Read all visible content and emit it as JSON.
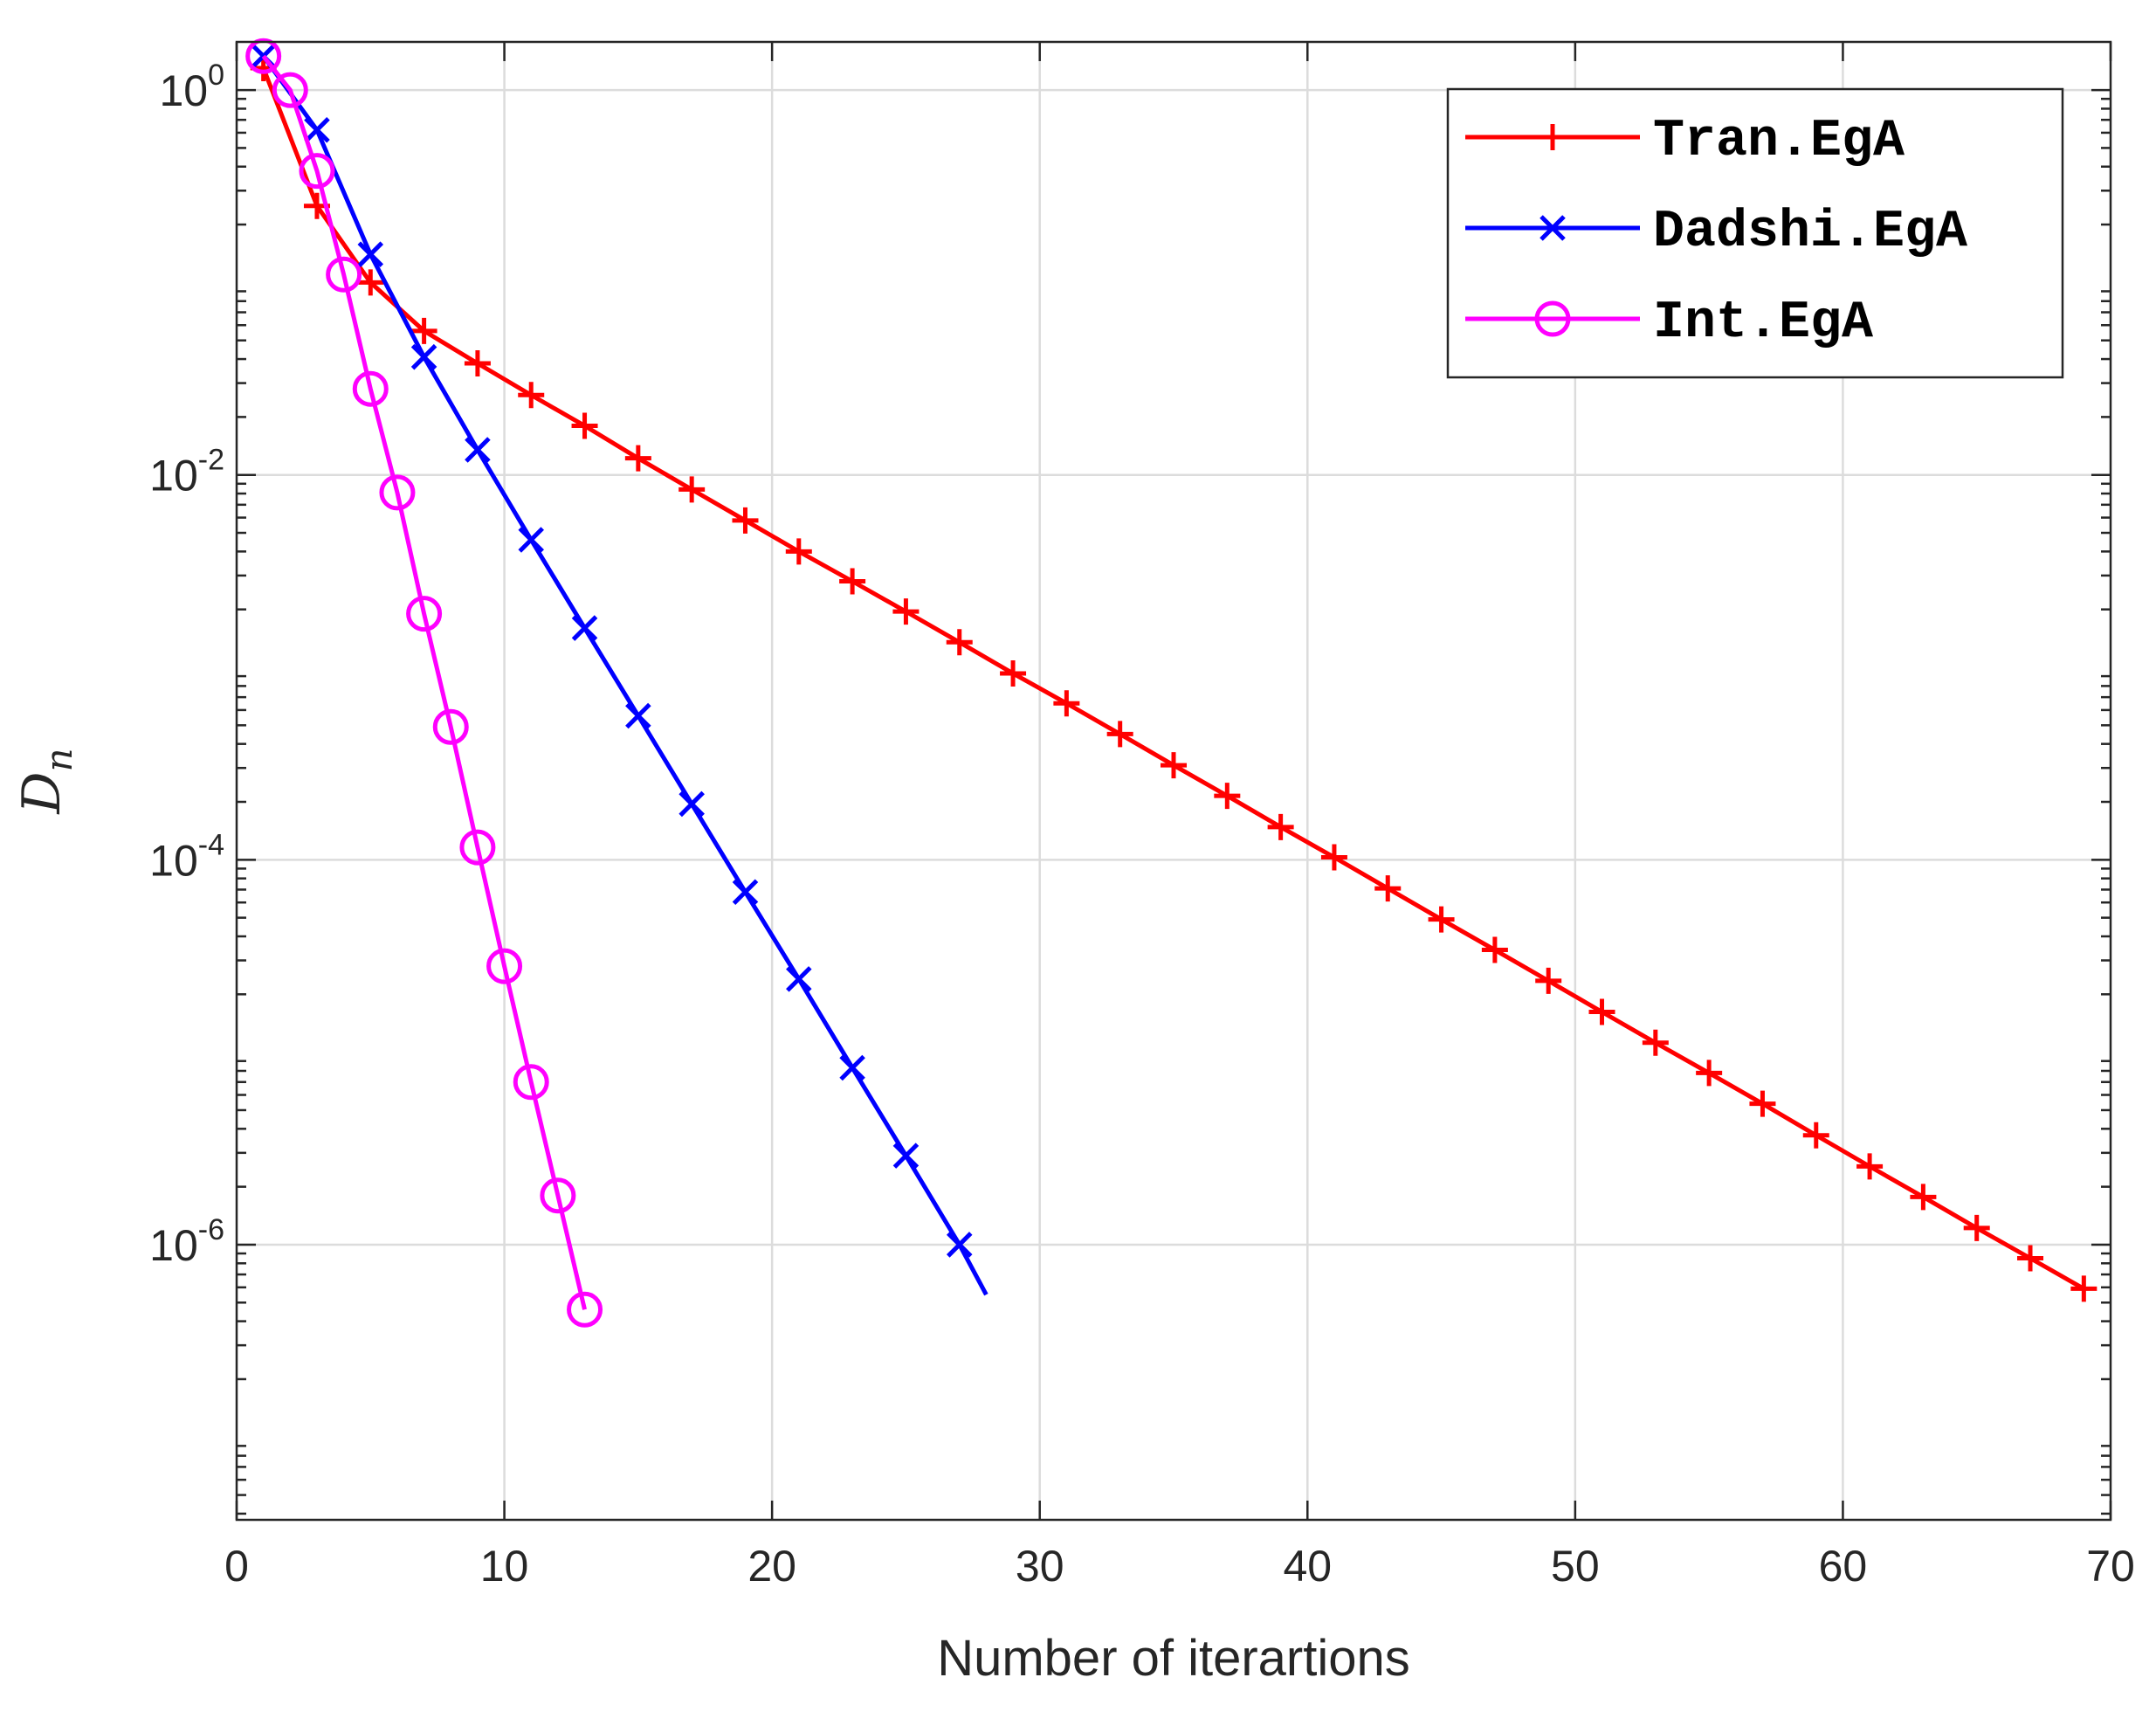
{
  "chart_data": {
    "type": "line",
    "title": "",
    "xlabel": "Number of iterartions",
    "ylabel": "D",
    "ylabel_subscript": "n",
    "xlim": [
      0,
      70
    ],
    "ylim_log10": [
      -7.43,
      0.25
    ],
    "yscale": "log",
    "grid": true,
    "legend_position": "top-right",
    "x_ticks": [
      0,
      10,
      20,
      30,
      40,
      50,
      60,
      70
    ],
    "y_ticks": [
      {
        "exp": 0,
        "base": "10",
        "power": "0"
      },
      {
        "exp": -2,
        "base": "10",
        "power": "-2"
      },
      {
        "exp": -4,
        "base": "10",
        "power": "-4"
      },
      {
        "exp": -6,
        "base": "10",
        "power": "-6"
      }
    ],
    "series": [
      {
        "name": "Tran.EgA",
        "color": "#ff0000",
        "marker": "plus",
        "x": [
          1,
          3,
          5,
          7,
          9,
          11,
          13,
          15,
          17,
          19,
          21,
          23,
          25,
          27,
          29,
          31,
          33,
          35,
          37,
          39,
          41,
          43,
          45,
          47,
          49,
          51,
          53,
          55,
          57,
          59,
          61,
          63,
          65,
          67,
          69
        ],
        "y": [
          1.3,
          0.25,
          0.1,
          0.056,
          0.038,
          0.026,
          0.018,
          0.0122,
          0.0084,
          0.0058,
          0.004,
          0.0028,
          0.00195,
          0.00135,
          0.00093,
          0.00065,
          0.00045,
          0.00031,
          0.000215,
          0.000148,
          0.000103,
          7.1e-05,
          4.9e-05,
          3.4e-05,
          2.35e-05,
          1.62e-05,
          1.12e-05,
          7.8e-06,
          5.4e-06,
          3.7e-06,
          2.55e-06,
          1.77e-06,
          1.22e-06,
          8.5e-07,
          5.9e-07
        ]
      },
      {
        "name": "Dadshi.EgA",
        "color": "#0000ff",
        "marker": "x",
        "x": [
          1,
          3,
          5,
          7,
          9,
          11,
          13,
          15,
          17,
          19,
          21,
          23,
          25,
          27,
          28
        ],
        "y": [
          1.5,
          0.62,
          0.14,
          0.041,
          0.0135,
          0.0046,
          0.0016,
          0.00056,
          0.000195,
          6.8e-05,
          2.4e-05,
          8.3e-06,
          2.9e-06,
          1e-06,
          5.5e-07
        ]
      },
      {
        "name": "Int.EgA",
        "color": "#ff00ff",
        "marker": "circle",
        "x": [
          1,
          2,
          3,
          4,
          5,
          6,
          7,
          8,
          9,
          10,
          11,
          12,
          13
        ],
        "y": [
          1.5,
          1.0,
          0.38,
          0.11,
          0.028,
          0.0081,
          0.0019,
          0.00049,
          0.000116,
          2.8e-05,
          7e-06,
          1.8e-06,
          4.6e-07
        ]
      }
    ]
  }
}
